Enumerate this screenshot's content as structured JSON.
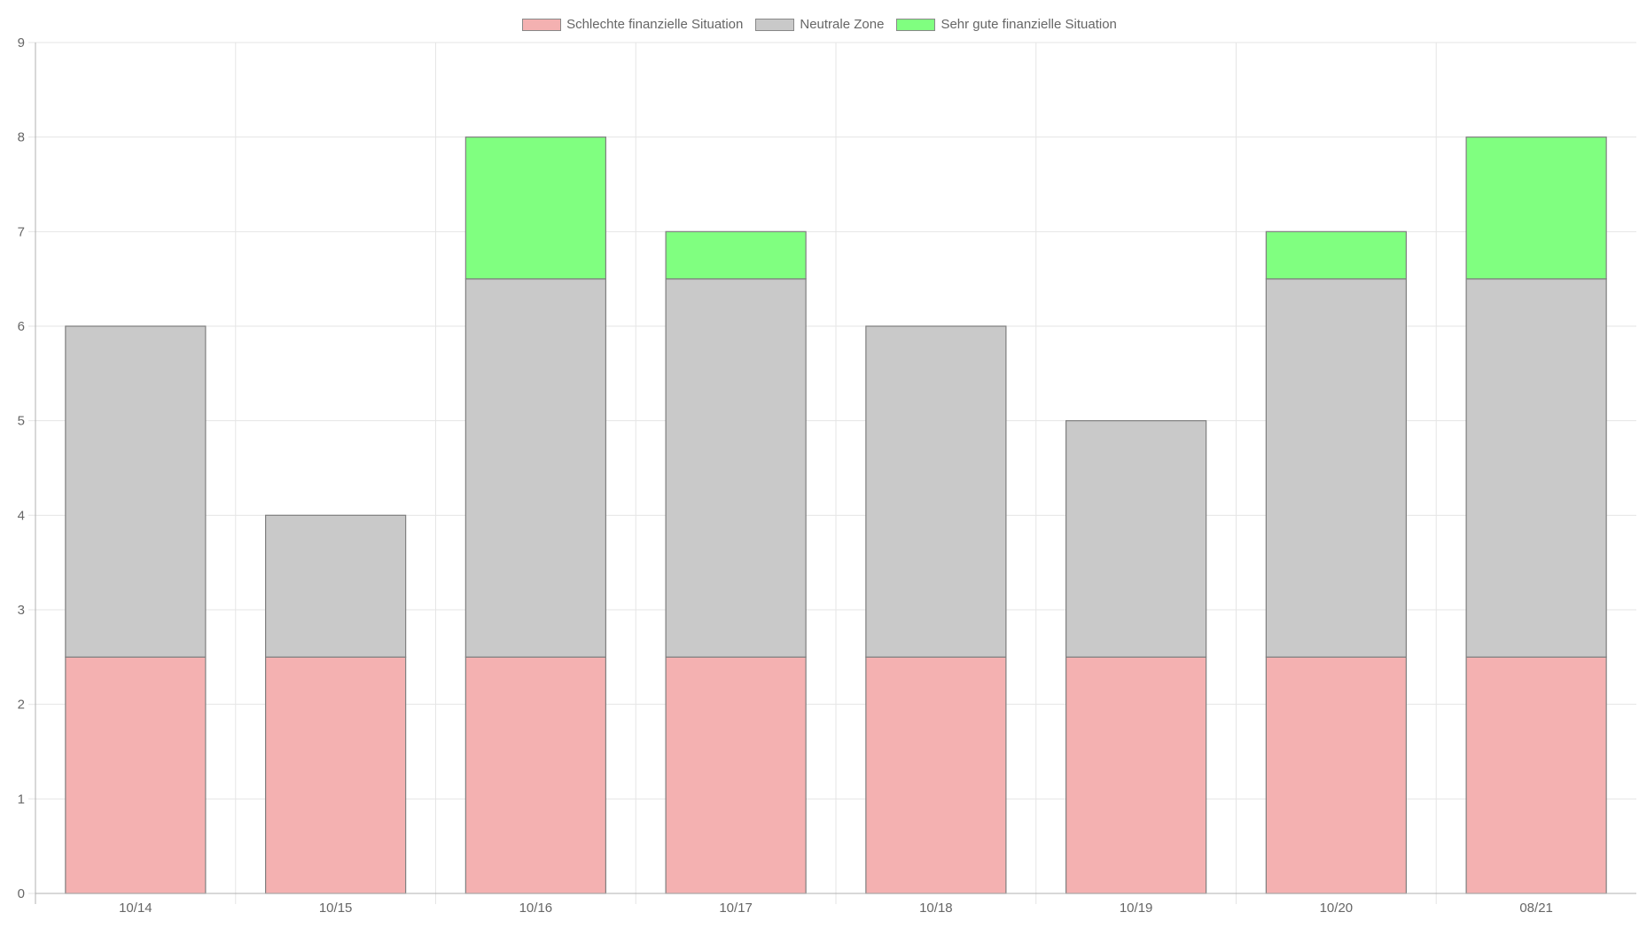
{
  "chart_data": {
    "type": "bar",
    "stacked": true,
    "categories": [
      "10/14",
      "10/15",
      "10/16",
      "10/17",
      "10/18",
      "10/19",
      "10/20",
      "08/21"
    ],
    "series": [
      {
        "name": "Schlechte finanzielle Situation",
        "color": "#f4b1b1",
        "values": [
          2.5,
          2.5,
          2.5,
          2.5,
          2.5,
          2.5,
          2.5,
          2.5
        ]
      },
      {
        "name": "Neutrale Zone",
        "color": "#c9c9c9",
        "values": [
          3.5,
          1.5,
          4,
          4,
          3.5,
          2.5,
          4,
          4
        ]
      },
      {
        "name": "Sehr gute finanzielle Situation",
        "color": "#80ff80",
        "values": [
          0,
          0,
          1.5,
          0.5,
          0,
          0,
          0.5,
          1.5
        ]
      }
    ],
    "ylim": [
      0,
      9
    ],
    "yticks": [
      "0",
      "1",
      "2",
      "3",
      "4",
      "5",
      "6",
      "7",
      "8",
      "9"
    ],
    "grid": true,
    "legend_position": "top-center",
    "bar_border_color": "#7f7f7f",
    "grid_color": "#e5e5e5",
    "axis_color": "#b0b0b0"
  }
}
